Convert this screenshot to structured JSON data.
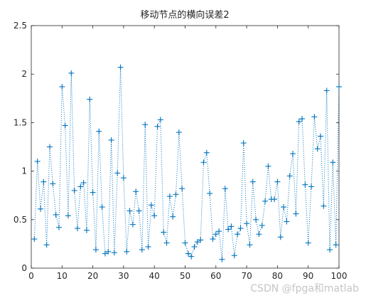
{
  "chart_data": {
    "type": "line",
    "title": "移动节点的横向误差2",
    "xlabel": "",
    "ylabel": "",
    "xlim": [
      0,
      100
    ],
    "ylim": [
      0,
      2.5
    ],
    "xticks": [
      0,
      10,
      20,
      30,
      40,
      50,
      60,
      70,
      80,
      90,
      100
    ],
    "yticks": [
      0,
      0.5,
      1,
      1.5,
      2,
      2.5
    ],
    "grid": false,
    "marker": "+",
    "line_style": "dotted",
    "series": [
      {
        "color": "#0072BD",
        "x": [
          1,
          2,
          3,
          4,
          5,
          6,
          7,
          8,
          9,
          10,
          11,
          12,
          13,
          14,
          15,
          16,
          17,
          18,
          19,
          20,
          21,
          22,
          23,
          24,
          25,
          26,
          27,
          28,
          29,
          30,
          31,
          32,
          33,
          34,
          35,
          36,
          37,
          38,
          39,
          40,
          41,
          42,
          43,
          44,
          45,
          46,
          47,
          48,
          49,
          50,
          51,
          52,
          53,
          54,
          55,
          56,
          57,
          58,
          59,
          60,
          61,
          62,
          63,
          64,
          65,
          66,
          67,
          68,
          69,
          70,
          71,
          72,
          73,
          74,
          75,
          76,
          77,
          78,
          79,
          80,
          81,
          82,
          83,
          84,
          85,
          86,
          87,
          88,
          89,
          90,
          91,
          92,
          93,
          94,
          95,
          96,
          97,
          98,
          99,
          100
        ],
        "y": [
          0.3,
          1.1,
          0.61,
          0.89,
          0.24,
          1.25,
          0.87,
          0.55,
          0.42,
          1.87,
          1.47,
          0.54,
          2.01,
          0.8,
          0.41,
          0.84,
          0.88,
          0.39,
          1.74,
          0.78,
          0.19,
          1.41,
          0.63,
          0.15,
          0.17,
          1.32,
          0.16,
          0.98,
          2.07,
          0.93,
          0.17,
          0.59,
          0.45,
          0.79,
          0.59,
          0.19,
          1.48,
          0.22,
          0.65,
          0.54,
          1.46,
          1.53,
          0.37,
          0.26,
          0.74,
          0.53,
          0.76,
          1.4,
          0.82,
          0.26,
          0.15,
          0.12,
          0.22,
          0.27,
          0.29,
          1.09,
          1.19,
          0.77,
          0.3,
          0.35,
          0.38,
          0.09,
          0.82,
          0.4,
          0.43,
          0.13,
          0.35,
          0.41,
          1.29,
          0.46,
          0.24,
          0.89,
          0.5,
          0.35,
          0.44,
          0.69,
          1.05,
          0.71,
          0.71,
          0.89,
          0.32,
          0.63,
          0.48,
          0.95,
          1.18,
          0.56,
          1.51,
          1.54,
          0.86,
          0.26,
          0.84,
          1.56,
          1.23,
          1.36,
          0.64,
          1.83,
          0.19,
          1.09,
          0.24,
          1.87
        ]
      }
    ]
  },
  "watermark": "CSDN @fpga和matlab"
}
